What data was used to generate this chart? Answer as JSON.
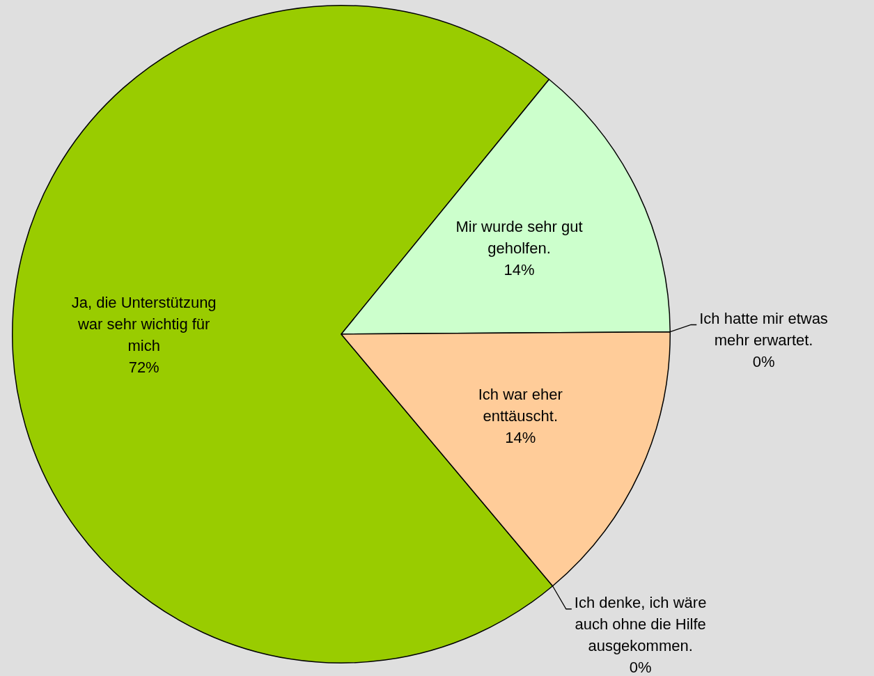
{
  "chart_data": {
    "type": "pie",
    "categories": [
      "Ja, die Unterstützung war sehr wichtig für mich",
      "Mir wurde sehr gut geholfen.",
      "Ich hatte mir etwas mehr erwartet.",
      "Ich war eher enttäuscht.",
      "Ich denke, ich wäre auch ohne die Hilfe ausgekommen."
    ],
    "values": [
      72,
      14,
      0,
      14,
      0
    ],
    "value_labels": [
      "72%",
      "14%",
      "0%",
      "14%",
      "0%"
    ],
    "colors": [
      "#99cc00",
      "#ccffcc",
      "#ffff99",
      "#ffcc99",
      "#99ccff"
    ]
  }
}
